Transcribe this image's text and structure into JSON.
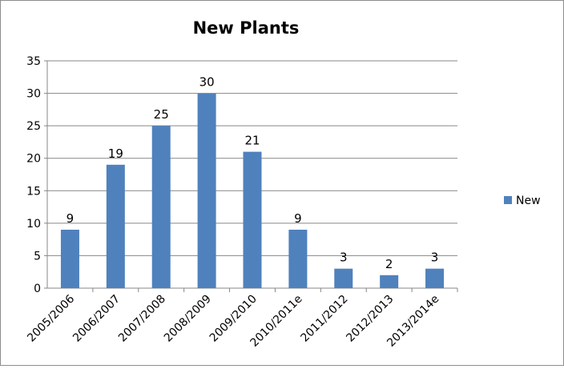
{
  "chart_data": {
    "type": "bar",
    "title": "New Plants",
    "xlabel": "",
    "ylabel": "",
    "categories": [
      "2005/2006",
      "2006/2007",
      "2007/2008",
      "2008/2009",
      "2009/2010",
      "2010/2011e",
      "2011/2012",
      "2012/2013",
      "2013/2014e"
    ],
    "series": [
      {
        "name": "New",
        "values": [
          9,
          19,
          25,
          30,
          21,
          9,
          3,
          2,
          3
        ],
        "color": "#4f81bd"
      }
    ],
    "ylim": [
      0,
      35
    ],
    "yticks": [
      0,
      5,
      10,
      15,
      20,
      25,
      30,
      35
    ],
    "grid": true,
    "legend": "right",
    "data_labels": true
  }
}
